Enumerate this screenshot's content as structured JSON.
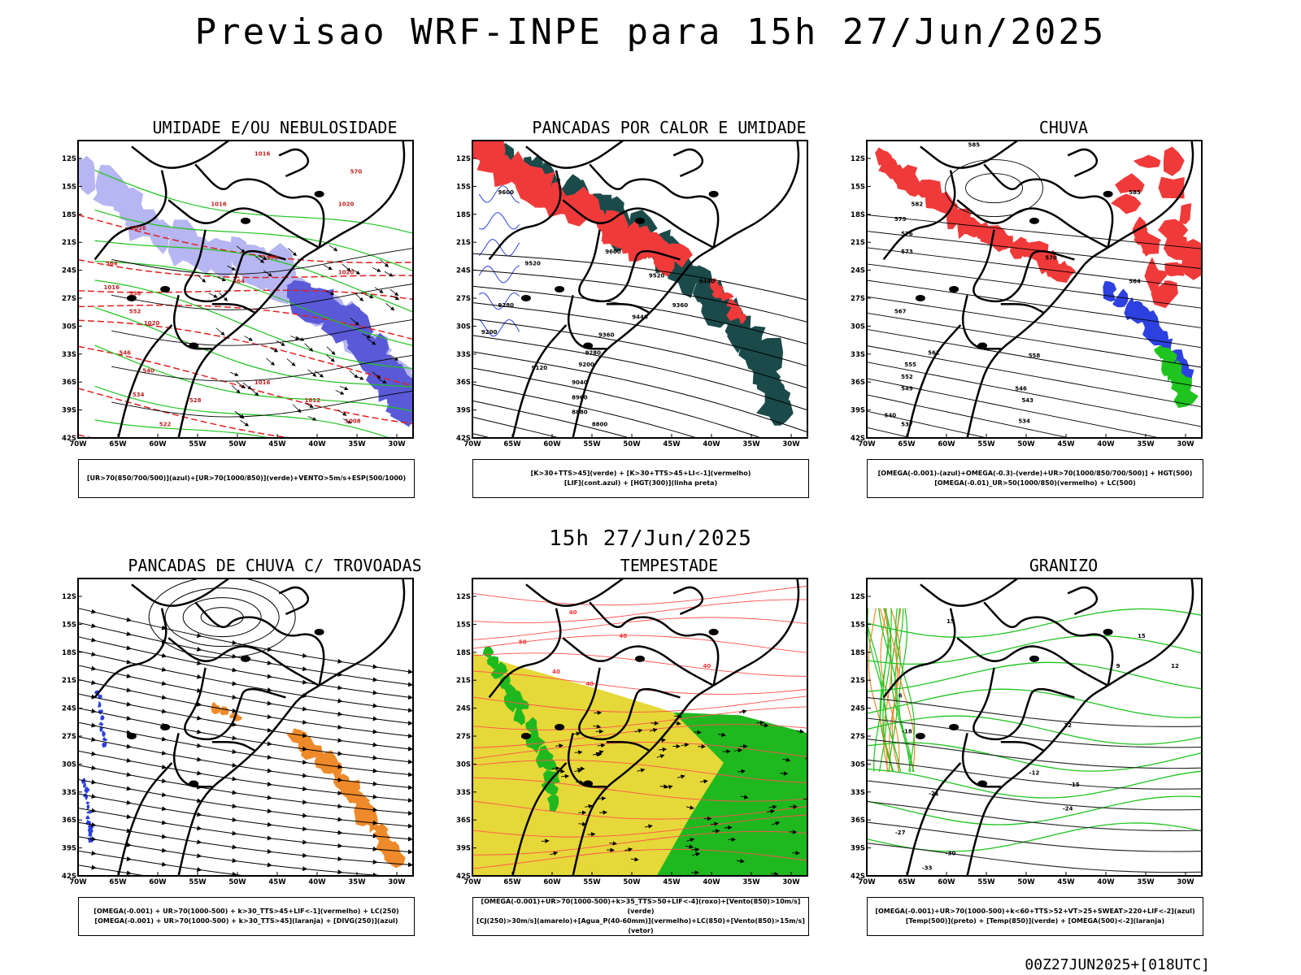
{
  "title": "Previsao WRF-INPE  para 15h 27/Jun/2025",
  "mid_date": "15h 27/Jun/2025",
  "footer": "00Z27JUN2025+[018UTC]",
  "lat_ticks": [
    "12S",
    "15S",
    "18S",
    "21S",
    "24S",
    "27S",
    "30S",
    "33S",
    "36S",
    "39S",
    "42S"
  ],
  "lon_ticks": [
    "70W",
    "65W",
    "60W",
    "55W",
    "50W",
    "45W",
    "40W",
    "35W",
    "30W"
  ],
  "panels": [
    {
      "title": "UMIDADE E/OU NEBULOSIDADE",
      "legend": [
        "[UR>70(850/700/500)](azul)+[UR>70(1000/850)](verde)+VENTO>5m/s+ESP(500/1000)"
      ],
      "labels": [
        "1016",
        "1016",
        "1016",
        "1020",
        "1020",
        "1016",
        "1020",
        "1016",
        "1012",
        "1008",
        "570",
        "564",
        "558",
        "552",
        "546",
        "540",
        "534",
        "528",
        "522",
        "570",
        "564"
      ]
    },
    {
      "title": "PANCADAS POR CALOR E UMIDADE",
      "legend": [
        "[K>30+TTS>45](verde) + [K>30+TTS>45+LI<-1](vermelho)",
        "[LIF](cont.azul) + [HGT(300)](linha preta)"
      ],
      "labels": [
        "9600",
        "9520",
        "9440",
        "9360",
        "9280",
        "9200",
        "9120",
        "9040",
        "8960",
        "8880",
        "8800",
        "9600",
        "9520",
        "9440",
        "9360",
        "9280",
        "9200"
      ]
    },
    {
      "title": "CHUVA",
      "legend": [
        "[OMEGA(-0.001)-(azul)+OMEGA(-0.3)-(verde)+UR>70(1000/850/700/500)] + HGT(500)",
        "[OMEGA(-0.01)_UR>50(1000/850)(vermelho) + LC(500)"
      ],
      "labels": [
        "585",
        "585",
        "582",
        "579",
        "576",
        "573",
        "570",
        "567",
        "564",
        "561",
        "558",
        "555",
        "552",
        "549",
        "546",
        "543",
        "540",
        "537",
        "534"
      ]
    },
    {
      "title": "PANCADAS DE CHUVA C/ TROVOADAS",
      "legend": [
        "[OMEGA(-0.001) + UR>70(1000-500) + k>30_TTS>45+LIF<-1](vermelho) + LC(250)",
        "[OMEGA(-0.001) + UR>70(1000-500) + k>30_TTS>45](laranja) + [DIVG(250)](azul)"
      ],
      "labels": []
    },
    {
      "title": "TEMPESTADE",
      "legend": [
        "[OMEGA(-0.001)+UR>70(1000-500)+k>35_TTS>50+LIF<-4](roxo)+[Vento(850)>10m/s](verde)",
        "[CJ(250)>30m/s](amarelo)+[Agua_P(40-60mm)](vermelho)+LC(850)+[Vento(850)>15m/s](vetor)"
      ],
      "labels": [
        "40",
        "40",
        "40",
        "40",
        "40",
        "50"
      ]
    },
    {
      "title": "GRANIZO",
      "legend": [
        "[OMEGA(-0.001)+UR>70(1000-500)+k<60+TTS>52+VT>25+SWEAT>220+LIF<-2](azul)",
        "[Temp(500)](preto) + [Temp(850)](verde) + [OMEGA(500)<-2](laranja)"
      ],
      "labels": [
        "-12",
        "-15",
        "-18",
        "-21",
        "-24",
        "-27",
        "-30",
        "-33",
        "15",
        "15",
        "12",
        "12",
        "9",
        "6"
      ]
    }
  ]
}
